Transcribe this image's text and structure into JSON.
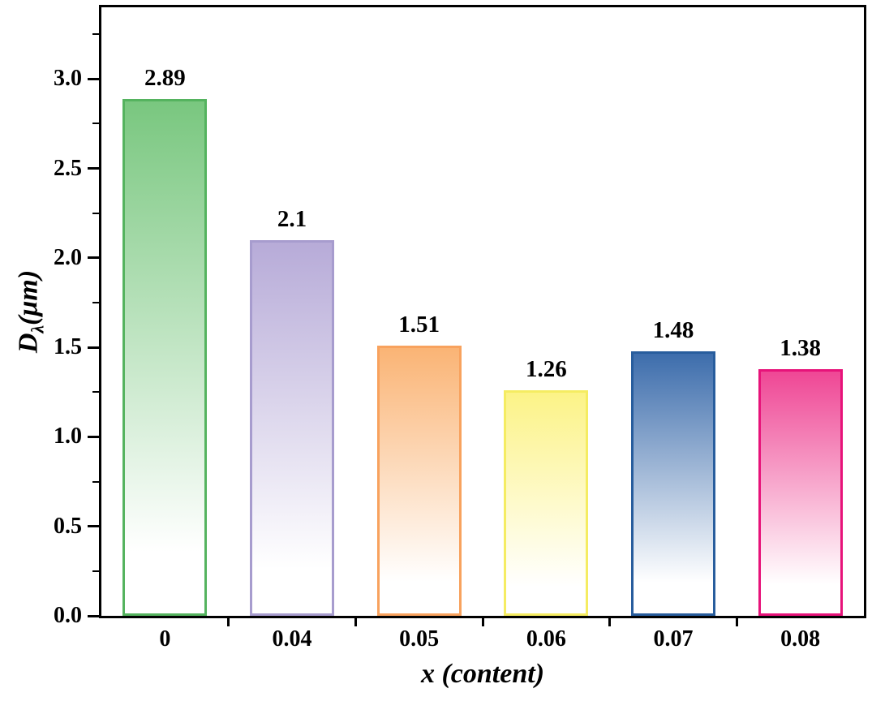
{
  "chart_data": {
    "type": "bar",
    "title": "",
    "categories": [
      "0",
      "0.04",
      "0.05",
      "0.06",
      "0.07",
      "0.08"
    ],
    "values": [
      2.89,
      2.1,
      1.51,
      1.26,
      1.48,
      1.38
    ],
    "value_labels": [
      "2.89",
      "2.1",
      "1.51",
      "1.26",
      "1.48",
      "1.38"
    ],
    "bar_colors": [
      {
        "border": "#55b35f",
        "top": "#79c77f"
      },
      {
        "border": "#a79cce",
        "top": "#b7abd8"
      },
      {
        "border": "#f8a25e",
        "top": "#fab475"
      },
      {
        "border": "#f5ec62",
        "top": "#fcf387"
      },
      {
        "border": "#285d9d",
        "top": "#3d6dac"
      },
      {
        "border": "#e7137a",
        "top": "#ef4795"
      }
    ],
    "xlabel": "x (content)",
    "ylabel_main": "D",
    "ylabel_sub": "λ",
    "ylabel_units": "(μm)",
    "ylim": [
      0,
      3.4
    ],
    "yticks": [
      0.0,
      0.5,
      1.0,
      1.5,
      2.0,
      2.5,
      3.0
    ],
    "ytick_labels": [
      "0.0",
      "0.5",
      "1.0",
      "1.5",
      "2.0",
      "2.5",
      "3.0"
    ],
    "minor_tick_step": 0.25,
    "grid": false,
    "legend": "none",
    "axis_color": "#000000",
    "background": "#ffffff"
  }
}
